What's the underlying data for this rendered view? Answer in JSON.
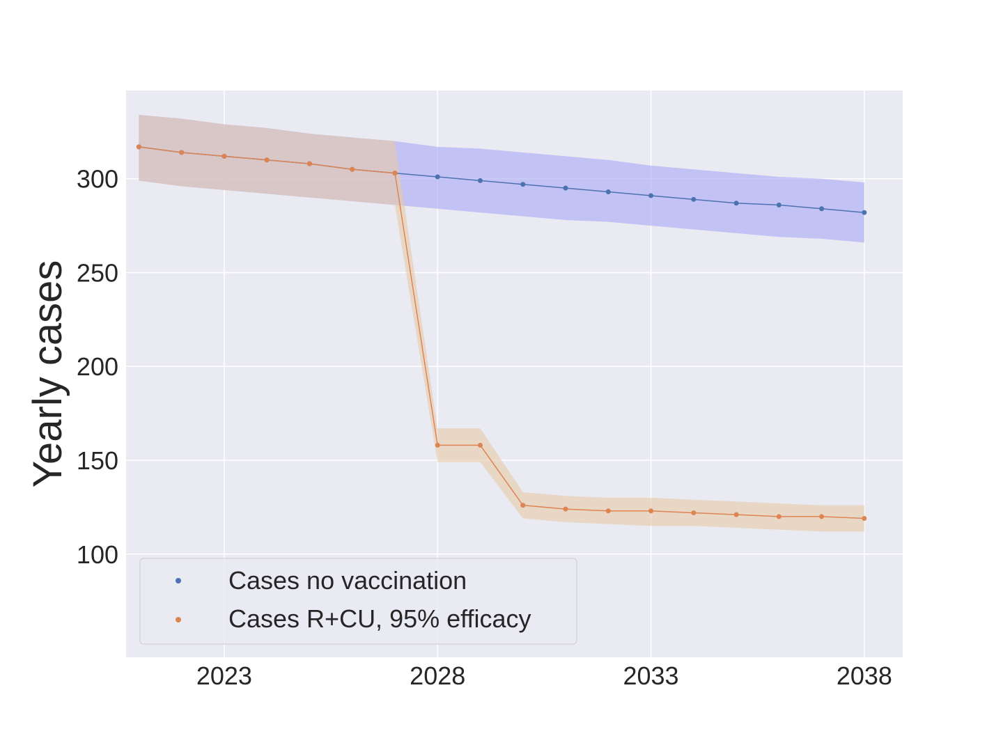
{
  "chart_data": {
    "type": "line",
    "title": "",
    "xlabel": "",
    "ylabel": "Yearly cases",
    "xlim": [
      2020.7,
      2038.9
    ],
    "ylim": [
      45,
      347
    ],
    "x_ticks": [
      2023,
      2028,
      2033,
      2038
    ],
    "y_ticks": [
      100,
      150,
      200,
      250,
      300
    ],
    "grid": true,
    "legend": "lower-left",
    "x": [
      2021,
      2022,
      2023,
      2024,
      2025,
      2026,
      2027,
      2028,
      2029,
      2030,
      2031,
      2032,
      2033,
      2034,
      2035,
      2036,
      2037,
      2038
    ],
    "series": [
      {
        "name": "Cases no vaccination",
        "color": "#4c72b0",
        "band_color": "#a0a0f6",
        "values": [
          317,
          314,
          312,
          310,
          308,
          305,
          303,
          301,
          299,
          297,
          295,
          293,
          291,
          289,
          287,
          286,
          284,
          282
        ],
        "lower": [
          299,
          296,
          294,
          292,
          290,
          288,
          286,
          284,
          282,
          280,
          278,
          277,
          275,
          273,
          271,
          269,
          268,
          266
        ],
        "upper": [
          334,
          332,
          329,
          327,
          324,
          322,
          320,
          317,
          316,
          314,
          312,
          310,
          307,
          305,
          303,
          301,
          300,
          298
        ]
      },
      {
        "name": "Cases R+CU, 95% efficacy",
        "color": "#dd8452",
        "band_color": "#e8c9a8",
        "values": [
          317,
          314,
          312,
          310,
          308,
          305,
          303,
          158,
          158,
          126,
          124,
          123,
          123,
          122,
          121,
          120,
          120,
          119
        ],
        "lower": [
          299,
          296,
          294,
          292,
          290,
          288,
          286,
          149,
          149,
          119,
          117,
          116,
          115,
          115,
          114,
          113,
          112,
          112
        ],
        "upper": [
          334,
          332,
          329,
          327,
          324,
          322,
          320,
          167,
          167,
          133,
          131,
          130,
          130,
          129,
          128,
          127,
          126,
          126
        ]
      }
    ]
  }
}
